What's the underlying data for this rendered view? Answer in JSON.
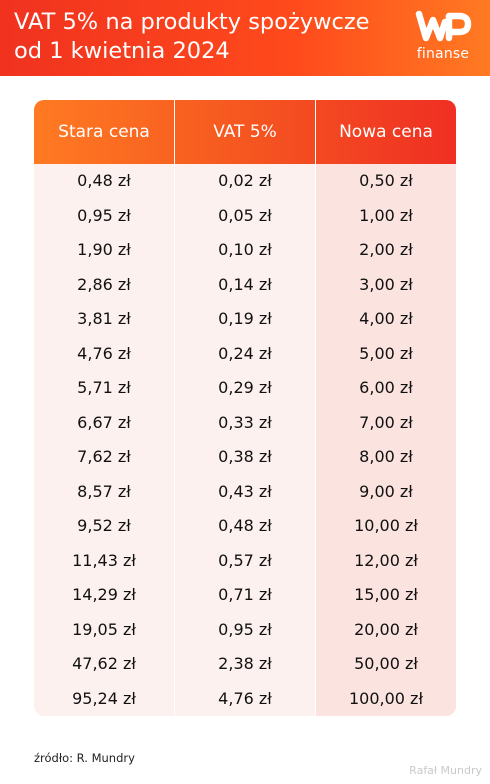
{
  "header": {
    "title_line1": "VAT 5% na produkty spożywcze",
    "title_line2": "od 1 kwietnia 2024",
    "logo_text": "finanse",
    "logo_icon": "wp-logo-icon"
  },
  "colors": {
    "header_red": "#f0321f",
    "header_orange": "#ff7a22",
    "table_bg": "#fdf1ef",
    "highlight_col": "#fbe3e0"
  },
  "chart_data": {
    "type": "table",
    "columns": [
      "Stara cena",
      "VAT 5%",
      "Nowa cena"
    ],
    "rows": [
      [
        "0,48 zł",
        "0,02 zł",
        "0,50 zł"
      ],
      [
        "0,95 zł",
        "0,05 zł",
        "1,00 zł"
      ],
      [
        "1,90 zł",
        "0,10 zł",
        "2,00 zł"
      ],
      [
        "2,86 zł",
        "0,14 zł",
        "3,00 zł"
      ],
      [
        "3,81 zł",
        "0,19 zł",
        "4,00 zł"
      ],
      [
        "4,76 zł",
        "0,24 zł",
        "5,00 zł"
      ],
      [
        "5,71 zł",
        "0,29 zł",
        "6,00 zł"
      ],
      [
        "6,67 zł",
        "0,33 zł",
        "7,00 zł"
      ],
      [
        "7,62 zł",
        "0,38 zł",
        "8,00 zł"
      ],
      [
        "8,57 zł",
        "0,43 zł",
        "9,00 zł"
      ],
      [
        "9,52 zł",
        "0,48 zł",
        "10,00 zł"
      ],
      [
        "11,43 zł",
        "0,57 zł",
        "12,00 zł"
      ],
      [
        "14,29 zł",
        "0,71 zł",
        "15,00 zł"
      ],
      [
        "19,05 zł",
        "0,95 zł",
        "20,00 zł"
      ],
      [
        "47,62 zł",
        "2,38 zł",
        "50,00 zł"
      ],
      [
        "95,24 zł",
        "4,76 zł",
        "100,00 zł"
      ]
    ]
  },
  "footer": {
    "source": "źródło: R. Mundry",
    "watermark": "Rafał Mundry"
  }
}
